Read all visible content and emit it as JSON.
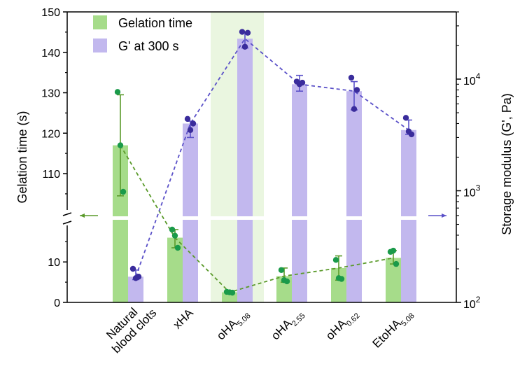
{
  "chart_data": {
    "type": "bar",
    "categories": [
      "Natural blood clots",
      "xHA",
      "oHA5.08",
      "oHA2.55",
      "oHA0.62",
      "EtoHA5.08"
    ],
    "category_labels": [
      {
        "lines": [
          "Natural",
          "blood clots"
        ],
        "base": "",
        "sub": ""
      },
      {
        "lines": [],
        "base": "xHA",
        "sub": ""
      },
      {
        "lines": [],
        "base": "oHA",
        "sub": "5.08"
      },
      {
        "lines": [],
        "base": "oHA",
        "sub": "2.55"
      },
      {
        "lines": [],
        "base": "oHA",
        "sub": "0.62"
      },
      {
        "lines": [],
        "base": "EtoHA",
        "sub": "5.08"
      }
    ],
    "highlighted_category": "oHA5.08",
    "series": [
      {
        "name": "Gelation time",
        "axis": "left",
        "color": "#a6dc8a",
        "point_color": "#1a9a4a",
        "line_color": "#5a9a2a",
        "values": [
          117,
          16,
          2.5,
          6.5,
          8.5,
          11
        ],
        "error_low": [
          104.5,
          13.5,
          2.3,
          5,
          5.5,
          9.5
        ],
        "error_high": [
          129.5,
          18,
          2.8,
          8.5,
          11.5,
          12.8
        ],
        "points": [
          [
            130.2,
            117,
            105.5
          ],
          [
            18,
            16.5,
            13.5
          ],
          [
            2.6,
            2.5,
            2.4
          ],
          [
            8,
            5.5,
            5.2
          ],
          [
            10.5,
            6,
            5.8
          ],
          [
            12.5,
            12.8,
            9.5
          ]
        ]
      },
      {
        "name": "G' at 300 s",
        "axis": "right",
        "color": "#c2b8ee",
        "point_color": "#3a2c9c",
        "line_color": "#5a50c8",
        "values": [
          170,
          4000,
          23000,
          9000,
          7800,
          3500
        ],
        "error_low": [
          160,
          3000,
          19000,
          7800,
          5300,
          3200
        ],
        "error_high": [
          195,
          4200,
          26500,
          10800,
          9500,
          4300
        ],
        "points": [
          [
            200,
            165,
            170
          ],
          [
            4400,
            3500,
            4000
          ],
          [
            26500,
            19500,
            26000
          ],
          [
            9500,
            9000,
            9300
          ],
          [
            10300,
            5400,
            8000
          ],
          [
            4500,
            3400,
            3200
          ]
        ]
      }
    ],
    "left_axis": {
      "label": "Gelation time (s)",
      "broken": true,
      "lower_range": [
        0,
        18
      ],
      "lower_ticks": [
        0,
        10
      ],
      "upper_range": [
        101,
        150
      ],
      "upper_ticks": [
        110,
        120,
        130,
        140,
        150
      ],
      "tick_labels": [
        "0",
        "10",
        "110",
        "120",
        "130",
        "140",
        "150"
      ]
    },
    "right_axis": {
      "label": "Storage modulus (G', Pa)",
      "scale": "log",
      "range": [
        100,
        40000
      ],
      "ticks": [
        {
          "value": 100,
          "base": "10",
          "exp": "2"
        },
        {
          "value": 1000,
          "base": "10",
          "exp": "3"
        },
        {
          "value": 10000,
          "base": "10",
          "exp": "4"
        }
      ]
    },
    "legend": {
      "position": "top-left"
    },
    "grid": false
  }
}
